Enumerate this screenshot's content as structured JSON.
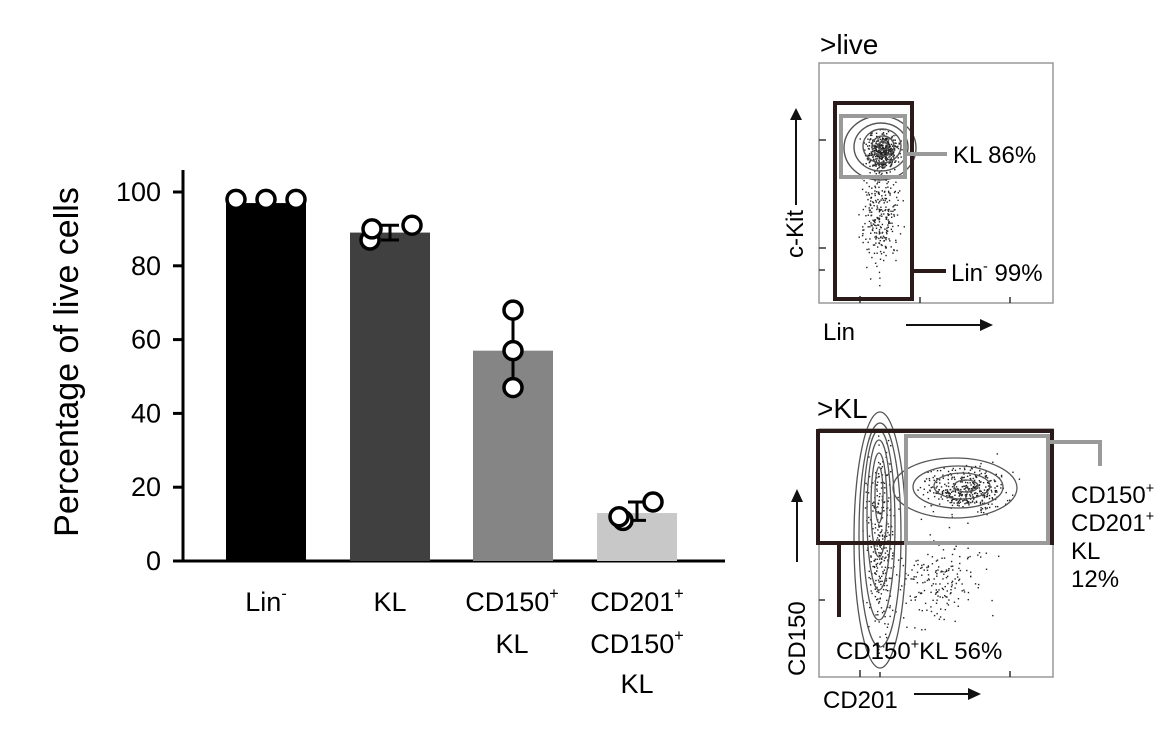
{
  "chart_data": [
    {
      "type": "bar",
      "ylabel": "Percentage of live cells",
      "ylim": [
        0,
        100
      ],
      "yticks": [
        0,
        20,
        40,
        60,
        80,
        100
      ],
      "categories": [
        {
          "lines": [
            [
              "Lin",
              "-"
            ]
          ]
        },
        {
          "lines": [
            [
              "KL",
              ""
            ]
          ]
        },
        {
          "lines": [
            [
              "CD150",
              "+"
            ],
            [
              "KL",
              ""
            ]
          ]
        },
        {
          "lines": [
            [
              "CD201",
              "+"
            ],
            [
              "CD150",
              "+"
            ],
            [
              "KL",
              ""
            ]
          ]
        }
      ],
      "category_labels": [
        "Lin-",
        "KL",
        "CD150+ KL",
        "CD201+ CD150+ KL"
      ],
      "values": [
        97,
        89,
        57,
        13
      ],
      "errors": [
        [
          96,
          98
        ],
        [
          87,
          91
        ],
        [
          47,
          68
        ],
        [
          11,
          16
        ]
      ],
      "points": [
        [
          98,
          98,
          98
        ],
        [
          87,
          90,
          91
        ],
        [
          47,
          57,
          68
        ],
        [
          11,
          12,
          16
        ]
      ],
      "bar_colors": [
        "#000000",
        "#404040",
        "#858585",
        "#c8c8c8"
      ]
    }
  ],
  "flow_panels": [
    {
      "title": ">live",
      "x_axis": "Lin",
      "y_axis": "c-Kit",
      "gates": [
        {
          "name": "KL",
          "value": "86%"
        },
        {
          "name": "Lin",
          "sup": "-",
          "value": "99%"
        }
      ]
    },
    {
      "title": ">KL",
      "x_axis": "CD201",
      "y_axis": "CD150",
      "gates": [
        {
          "lines": [
            [
              "CD150",
              "+"
            ],
            [
              "CD201",
              "+"
            ],
            [
              "KL",
              ""
            ],
            [
              "12%",
              ""
            ]
          ]
        },
        {
          "name": "CD150",
          "sup": "+",
          "name2": "KL",
          "value": "56%"
        }
      ]
    }
  ],
  "colors": {
    "black": "#000000",
    "gate_dark": "#2a1a1a",
    "gate_gray": "#9a9a9a"
  }
}
